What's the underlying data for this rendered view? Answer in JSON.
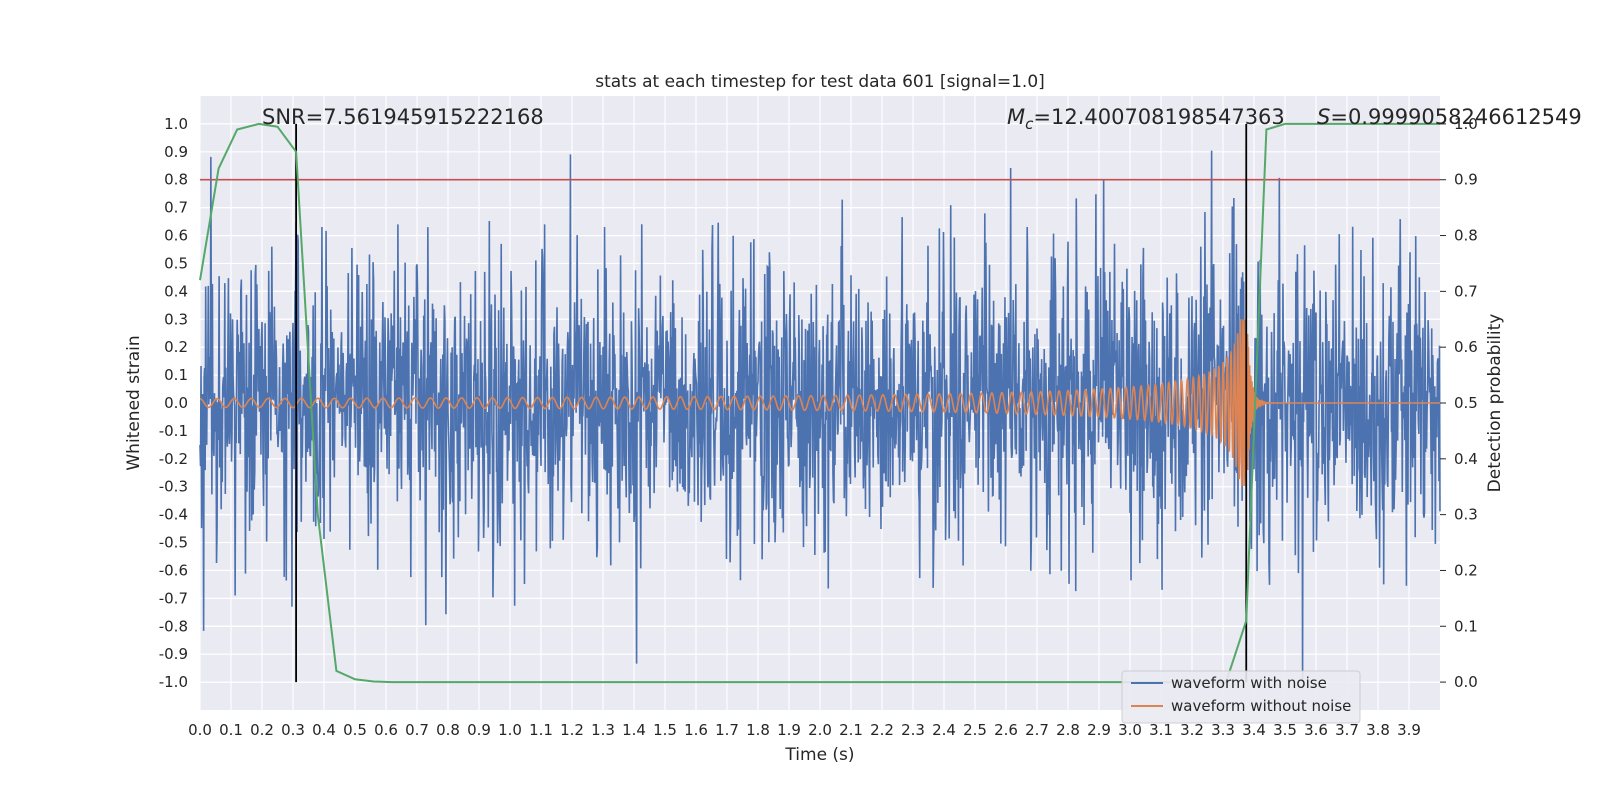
{
  "chart_data": {
    "type": "line",
    "title": "stats at each timestep for test data 601 [signal=1.0]",
    "xlabel": "Time (s)",
    "ylabel": "Whitened strain",
    "y2label": "Detection probability",
    "xlim": [
      0.0,
      4.0
    ],
    "ylim": [
      -1.1,
      1.1
    ],
    "y2lim": [
      -0.05,
      1.05
    ],
    "xticks": [
      "0.0",
      "0.1",
      "0.2",
      "0.3",
      "0.4",
      "0.5",
      "0.6",
      "0.7",
      "0.8",
      "0.9",
      "1.0",
      "1.1",
      "1.2",
      "1.3",
      "1.4",
      "1.5",
      "1.6",
      "1.7",
      "1.8",
      "1.9",
      "2.0",
      "2.1",
      "2.2",
      "2.3",
      "2.4",
      "2.5",
      "2.6",
      "2.7",
      "2.8",
      "2.9",
      "3.0",
      "3.1",
      "3.2",
      "3.3",
      "3.4",
      "3.5",
      "3.6",
      "3.7",
      "3.8",
      "3.9"
    ],
    "yticks": [
      "1.0",
      "0.9",
      "0.8",
      "0.7",
      "0.6",
      "0.5",
      "0.4",
      "0.3",
      "0.2",
      "0.1",
      "0.0",
      "-0.1",
      "-0.2",
      "-0.3",
      "-0.4",
      "-0.5",
      "-0.6",
      "-0.7",
      "-0.8",
      "-0.9",
      "-1.0"
    ],
    "y2ticks": [
      "0.0",
      "0.1",
      "0.2",
      "0.3",
      "0.4",
      "0.5",
      "0.6",
      "0.7",
      "0.8",
      "0.9",
      "1.0"
    ],
    "threshold": 0.8,
    "vlines": [
      0.31,
      3.375
    ],
    "annotations": {
      "snr": "SNR=7.561945915222168",
      "mc_symbol": "M",
      "mc_sub": "c",
      "mc_value": "=12.400708198547363",
      "s_symbol": "S",
      "s_value": "=0.9999058246612549"
    },
    "series": [
      {
        "name": "waveform with noise",
        "color": "#4c72b0",
        "description": "whitened strain noise, mostly within about ±0.6 with spikes to ±1.0",
        "noise_amplitude": 0.6
      },
      {
        "name": "waveform without noise",
        "color": "#dd8452",
        "description": "chirp signal growing from ~0.01 to ~0.3 amplitude, merger near t=3.38 s",
        "merger_time": 3.38,
        "peak_amplitude": 0.3
      },
      {
        "name": "Detection probability",
        "color": "#55a868",
        "axis": "right",
        "x": [
          0.0,
          0.06,
          0.12,
          0.19,
          0.25,
          0.31,
          0.38,
          0.44,
          0.5,
          0.56,
          0.62,
          1.0,
          2.0,
          3.0,
          3.31,
          3.375,
          3.44,
          3.5,
          3.62,
          3.75,
          3.9,
          4.0
        ],
        "values": [
          0.72,
          0.92,
          0.99,
          1.0,
          0.995,
          0.95,
          0.3,
          0.02,
          0.005,
          0.001,
          0.0,
          0.0,
          0.0,
          0.0,
          0.0,
          0.11,
          0.99,
          1.0,
          1.0,
          1.0,
          1.0,
          1.0
        ]
      }
    ],
    "colors": {
      "background": "#eaeaf2",
      "grid": "#ffffff",
      "threshold_line": "#c44e52",
      "vline": "#000000"
    }
  }
}
